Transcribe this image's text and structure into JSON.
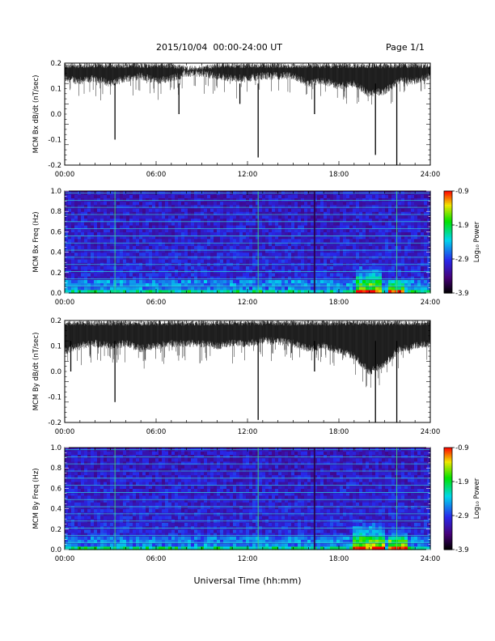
{
  "header": {
    "date_range": "2015/10/04  00:00-24:00 UT",
    "page": "Page 1/1"
  },
  "footer": {
    "xlabel": "Universal Time (hh:mm)"
  },
  "chart_data": [
    {
      "id": "bx-timeseries",
      "type": "line",
      "ylabel": "MCM Bx dB/dt (nT/sec)",
      "xlim": [
        0,
        24
      ],
      "xticks": [
        0,
        6,
        12,
        18,
        24
      ],
      "xtick_labels": [
        "00:00",
        "06:00",
        "12:00",
        "18:00",
        "24:00"
      ],
      "ylim": [
        -0.2,
        0.2
      ],
      "yticks": [
        -0.2,
        -0.1,
        0.0,
        0.1,
        0.2
      ],
      "ytick_labels": [
        "-0.2",
        "-0.1",
        "0.0",
        "0.1",
        "0.2"
      ],
      "series": [
        {
          "x": [
            0,
            1,
            2,
            3,
            4,
            5,
            6,
            7,
            8,
            9,
            10,
            11,
            12,
            13,
            14,
            15,
            16,
            17,
            18,
            19,
            20,
            21,
            22,
            23,
            24
          ],
          "upper": [
            0.2,
            0.2,
            0.2,
            0.2,
            0.2,
            0.2,
            0.2,
            0.2,
            0.19,
            0.19,
            0.2,
            0.2,
            0.2,
            0.2,
            0.2,
            0.2,
            0.2,
            0.2,
            0.2,
            0.2,
            0.2,
            0.2,
            0.2,
            0.2,
            0.2
          ],
          "lower": [
            0.14,
            0.13,
            0.14,
            0.12,
            0.14,
            0.15,
            0.13,
            0.14,
            0.16,
            0.16,
            0.15,
            0.14,
            0.14,
            0.15,
            0.15,
            0.15,
            0.12,
            0.13,
            0.11,
            0.12,
            0.08,
            0.09,
            0.13,
            0.13,
            0.15
          ]
        }
      ],
      "spikes": [
        {
          "x": 3.3,
          "y": -0.1
        },
        {
          "x": 7.5,
          "y": 0.0
        },
        {
          "x": 11.5,
          "y": 0.04
        },
        {
          "x": 12.7,
          "y": -0.17
        },
        {
          "x": 16.4,
          "y": 0.0
        },
        {
          "x": 20.4,
          "y": -0.16
        },
        {
          "x": 21.8,
          "y": -0.2
        }
      ]
    },
    {
      "id": "bx-spectrogram",
      "type": "heatmap",
      "ylabel": "MCM Bx Freq (Hz)",
      "xlim": [
        0,
        24
      ],
      "xticks": [
        0,
        6,
        12,
        18,
        24
      ],
      "xtick_labels": [
        "00:00",
        "06:00",
        "12:00",
        "18:00",
        "24:00"
      ],
      "ylim": [
        0,
        1.0
      ],
      "yticks": [
        0.0,
        0.2,
        0.4,
        0.6,
        0.8,
        1.0
      ],
      "ytick_labels": [
        "0.0",
        "0.2",
        "0.4",
        "0.6",
        "0.8",
        "1.0"
      ],
      "colorbar": {
        "label": "Log₁₀ Power",
        "range": [
          -3.9,
          -0.9
        ],
        "ticks": [
          -0.9,
          -1.9,
          -2.9,
          -3.9
        ],
        "tick_labels": [
          "-0.9",
          "-1.9",
          "-2.9",
          "-3.9"
        ]
      },
      "harmonic_lines_hz": [
        0.07,
        0.14,
        0.21,
        0.28,
        0.35,
        0.42,
        0.49,
        0.56,
        0.63,
        0.7,
        0.77,
        0.84,
        0.91,
        0.98
      ],
      "vertical_lines": [
        {
          "x": 3.3,
          "dark": false
        },
        {
          "x": 12.7,
          "dark": false
        },
        {
          "x": 16.4,
          "dark": true
        },
        {
          "x": 21.8,
          "dark": false
        }
      ],
      "activity_patches": [
        {
          "x0": 19.2,
          "x1": 20.8,
          "f1": 0.3
        },
        {
          "x0": 21.3,
          "x1": 22.4,
          "f1": 0.15
        }
      ]
    },
    {
      "id": "by-timeseries",
      "type": "line",
      "ylabel": "MCM By dB/dt (nT/sec)",
      "xlim": [
        0,
        24
      ],
      "xticks": [
        0,
        6,
        12,
        18,
        24
      ],
      "xtick_labels": [
        "00:00",
        "06:00",
        "12:00",
        "18:00",
        "24:00"
      ],
      "ylim": [
        -0.2,
        0.2
      ],
      "yticks": [
        -0.2,
        -0.1,
        0.0,
        0.1,
        0.2
      ],
      "ytick_labels": [
        "-0.2",
        "-0.1",
        "0.0",
        "0.1",
        "0.2"
      ],
      "series": [
        {
          "x": [
            0,
            1,
            2,
            3,
            4,
            5,
            6,
            7,
            8,
            9,
            10,
            11,
            12,
            13,
            14,
            15,
            16,
            17,
            18,
            19,
            20,
            21,
            22,
            23,
            24
          ],
          "upper": [
            0.2,
            0.2,
            0.2,
            0.2,
            0.2,
            0.2,
            0.2,
            0.2,
            0.2,
            0.2,
            0.2,
            0.2,
            0.2,
            0.2,
            0.2,
            0.2,
            0.2,
            0.2,
            0.2,
            0.2,
            0.2,
            0.2,
            0.2,
            0.2,
            0.2
          ],
          "lower": [
            0.08,
            0.1,
            0.11,
            0.1,
            0.11,
            0.09,
            0.1,
            0.11,
            0.11,
            0.11,
            0.1,
            0.11,
            0.11,
            0.12,
            0.12,
            0.11,
            0.09,
            0.1,
            0.08,
            0.06,
            0.0,
            0.03,
            0.09,
            0.1,
            0.11
          ]
        }
      ],
      "spikes": [
        {
          "x": 0.4,
          "y": 0.0
        },
        {
          "x": 3.3,
          "y": -0.12
        },
        {
          "x": 12.7,
          "y": -0.19
        },
        {
          "x": 16.4,
          "y": 0.0
        },
        {
          "x": 20.4,
          "y": -0.2
        },
        {
          "x": 21.8,
          "y": -0.2
        }
      ]
    },
    {
      "id": "by-spectrogram",
      "type": "heatmap",
      "ylabel": "MCM By Freq (Hz)",
      "xlim": [
        0,
        24
      ],
      "xticks": [
        0,
        6,
        12,
        18,
        24
      ],
      "xtick_labels": [
        "00:00",
        "06:00",
        "12:00",
        "18:00",
        "24:00"
      ],
      "ylim": [
        0,
        1.0
      ],
      "yticks": [
        0.0,
        0.2,
        0.4,
        0.6,
        0.8,
        1.0
      ],
      "ytick_labels": [
        "0.0",
        "0.2",
        "0.4",
        "0.6",
        "0.8",
        "1.0"
      ],
      "colorbar": {
        "label": "Log₁₀ Power",
        "range": [
          -3.9,
          -0.9
        ],
        "ticks": [
          -0.9,
          -1.9,
          -2.9,
          -3.9
        ],
        "tick_labels": [
          "-0.9",
          "-1.9",
          "-2.9",
          "-3.9"
        ]
      },
      "harmonic_lines_hz": [
        0.07,
        0.14,
        0.21,
        0.28,
        0.35,
        0.42,
        0.49,
        0.56,
        0.63,
        0.7,
        0.77,
        0.84,
        0.91,
        0.98
      ],
      "vertical_lines": [
        {
          "x": 3.3,
          "dark": false
        },
        {
          "x": 12.7,
          "dark": false
        },
        {
          "x": 16.4,
          "dark": true
        },
        {
          "x": 21.8,
          "dark": false
        }
      ],
      "activity_patches": [
        {
          "x0": 18.8,
          "x1": 21.0,
          "f1": 0.3
        },
        {
          "x0": 21.2,
          "x1": 22.6,
          "f1": 0.2
        }
      ]
    }
  ]
}
